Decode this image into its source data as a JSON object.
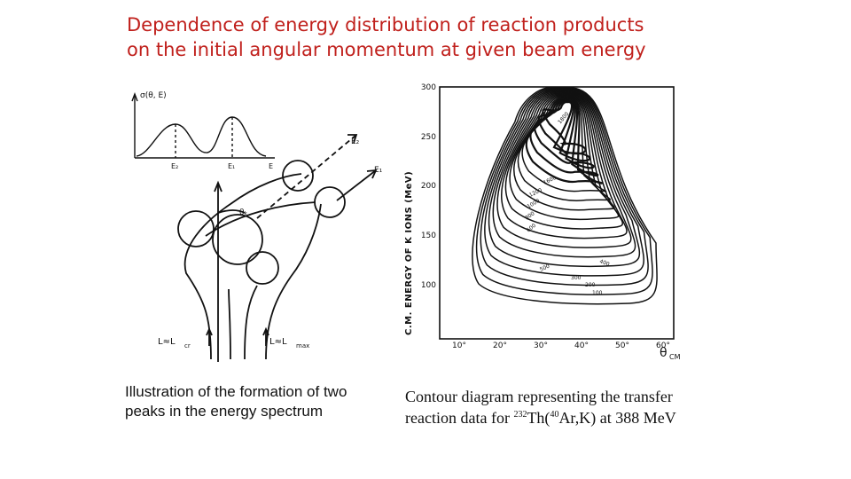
{
  "slide": {
    "title_line1": "Dependence of energy distribution of reaction products",
    "title_line2": "on the initial angular momentum at given beam energy"
  },
  "left_figure": {
    "spectrum_axis_label": "σ(θ, E)",
    "peak_labels": [
      "E₂",
      "E₁",
      "E"
    ],
    "beam_labels": [
      "E₂",
      "E₁"
    ],
    "angle_label": "θₖ",
    "l_labels": [
      "L≈L",
      "cr",
      "L≈L",
      "max"
    ],
    "caption_line1": "Illustration of the formation of two",
    "caption_line2": "peaks in the energy spectrum"
  },
  "right_figure": {
    "y_axis_label": "C.M. ENERGY OF K IONS (MeV)",
    "y_ticks": [
      "300",
      "250",
      "200",
      "150",
      "100"
    ],
    "x_ticks": [
      "10°",
      "20°",
      "30°",
      "40°",
      "50°",
      "60°"
    ],
    "x_axis_label": "θ",
    "x_axis_sub": "CM",
    "contour_labels": [
      "1800",
      "1600",
      "1200",
      "1000",
      "800",
      "600",
      "500",
      "300",
      "200",
      "100",
      "400"
    ],
    "caption_line1": "Contour diagram representing the transfer",
    "caption_prefix": "reaction data for ",
    "caption_sup1": "232",
    "caption_mid": "Th(",
    "caption_sup2": "40",
    "caption_suffix": "Ar,K) at 388 MeV"
  }
}
